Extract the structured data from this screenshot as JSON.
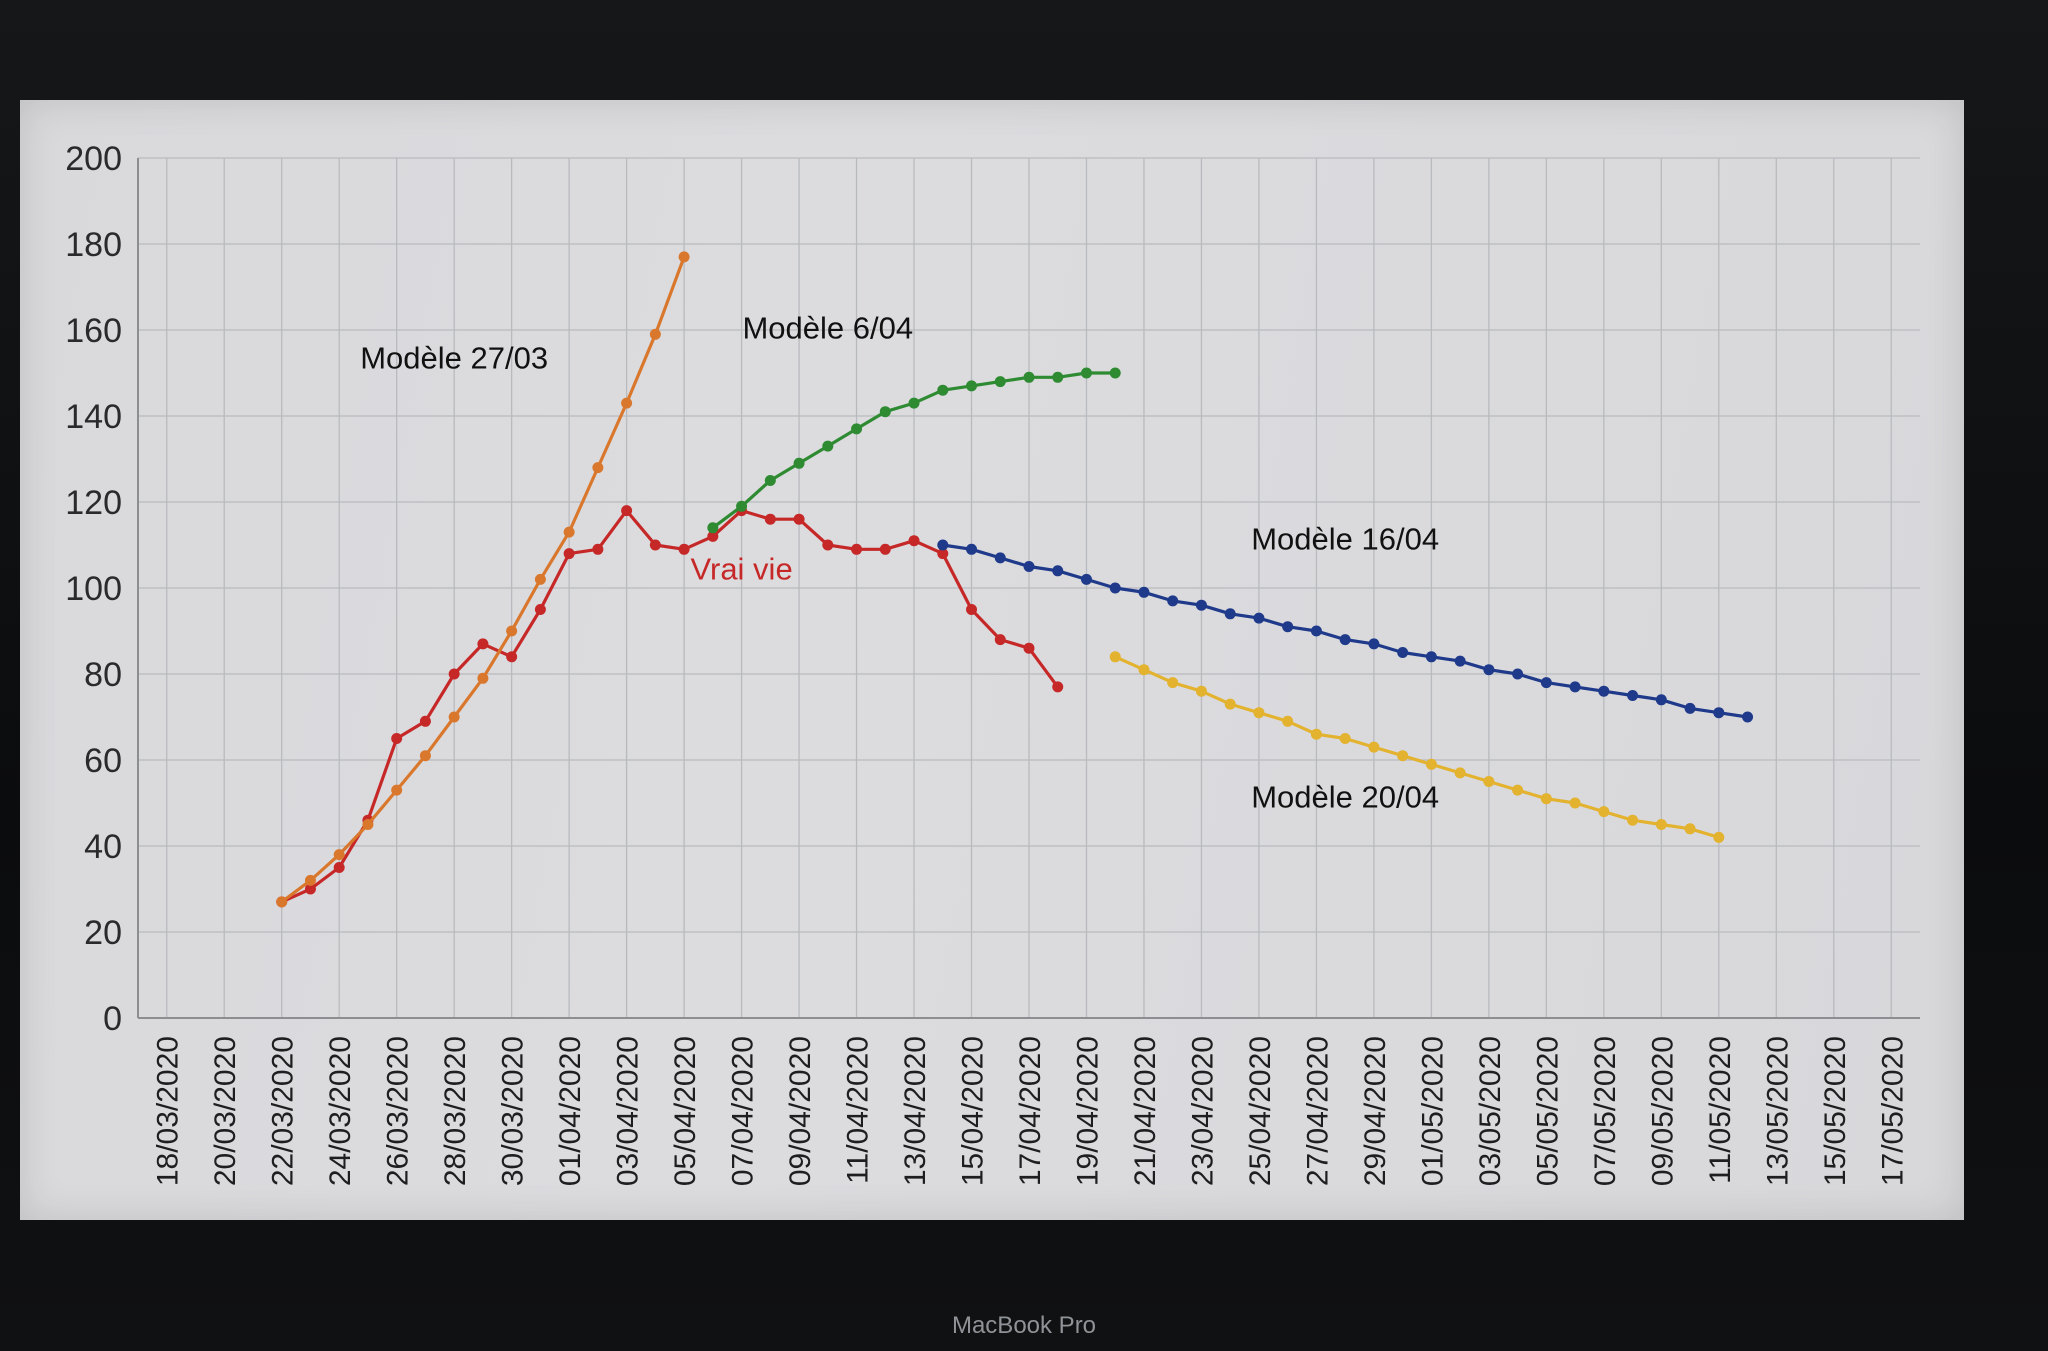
{
  "device": {
    "brand_label": "MacBook Pro"
  },
  "chart_data": {
    "type": "line",
    "ylim": [
      0,
      200
    ],
    "yticks": [
      0,
      20,
      40,
      60,
      80,
      100,
      120,
      140,
      160,
      180,
      200
    ],
    "grid": true,
    "x_type": "date",
    "xlim": [
      "2020-03-17",
      "2020-05-18"
    ],
    "xtick_labels": [
      "18/03/2020",
      "20/03/2020",
      "22/03/2020",
      "24/03/2020",
      "26/03/2020",
      "28/03/2020",
      "30/03/2020",
      "01/04/2020",
      "03/04/2020",
      "05/04/2020",
      "07/04/2020",
      "09/04/2020",
      "11/04/2020",
      "13/04/2020",
      "15/04/2020",
      "17/04/2020",
      "19/04/2020",
      "21/04/2020",
      "23/04/2020",
      "25/04/2020",
      "27/04/2020",
      "29/04/2020",
      "01/05/2020",
      "03/05/2020",
      "05/05/2020",
      "07/05/2020",
      "09/05/2020",
      "11/05/2020",
      "13/05/2020",
      "15/05/2020",
      "17/05/2020"
    ],
    "series": [
      {
        "name": "Vrai vie",
        "color": "#c62828",
        "x": [
          "2020-03-22",
          "2020-03-23",
          "2020-03-24",
          "2020-03-25",
          "2020-03-26",
          "2020-03-27",
          "2020-03-28",
          "2020-03-29",
          "2020-03-30",
          "2020-03-31",
          "2020-04-01",
          "2020-04-02",
          "2020-04-03",
          "2020-04-04",
          "2020-04-05",
          "2020-04-06",
          "2020-04-07",
          "2020-04-08",
          "2020-04-09",
          "2020-04-10",
          "2020-04-11",
          "2020-04-12",
          "2020-04-13",
          "2020-04-14",
          "2020-04-15",
          "2020-04-16",
          "2020-04-17",
          "2020-04-18"
        ],
        "y": [
          27,
          30,
          35,
          46,
          65,
          69,
          80,
          87,
          84,
          95,
          108,
          109,
          118,
          110,
          109,
          112,
          118,
          116,
          116,
          110,
          109,
          109,
          111,
          108,
          95,
          88,
          86,
          77
        ]
      },
      {
        "name": "Modèle 27/03",
        "color": "#d9782d",
        "x": [
          "2020-03-22",
          "2020-03-23",
          "2020-03-24",
          "2020-03-25",
          "2020-03-26",
          "2020-03-27",
          "2020-03-28",
          "2020-03-29",
          "2020-03-30",
          "2020-03-31",
          "2020-04-01",
          "2020-04-02",
          "2020-04-03",
          "2020-04-04",
          "2020-04-05"
        ],
        "y": [
          27,
          32,
          38,
          45,
          53,
          61,
          70,
          79,
          90,
          102,
          113,
          128,
          143,
          159,
          177
        ]
      },
      {
        "name": "Modèle 6/04",
        "color": "#2e8b32",
        "x": [
          "2020-04-06",
          "2020-04-07",
          "2020-04-08",
          "2020-04-09",
          "2020-04-10",
          "2020-04-11",
          "2020-04-12",
          "2020-04-13",
          "2020-04-14",
          "2020-04-15",
          "2020-04-16",
          "2020-04-17",
          "2020-04-18",
          "2020-04-19",
          "2020-04-20"
        ],
        "y": [
          114,
          119,
          125,
          129,
          133,
          137,
          141,
          143,
          146,
          147,
          148,
          149,
          149,
          150,
          150
        ]
      },
      {
        "name": "Modèle 16/04",
        "color": "#1f3a8a",
        "x": [
          "2020-04-14",
          "2020-04-15",
          "2020-04-16",
          "2020-04-17",
          "2020-04-18",
          "2020-04-19",
          "2020-04-20",
          "2020-04-21",
          "2020-04-22",
          "2020-04-23",
          "2020-04-24",
          "2020-04-25",
          "2020-04-26",
          "2020-04-27",
          "2020-04-28",
          "2020-04-29",
          "2020-04-30",
          "2020-05-01",
          "2020-05-02",
          "2020-05-03",
          "2020-05-04",
          "2020-05-05",
          "2020-05-06",
          "2020-05-07",
          "2020-05-08",
          "2020-05-09",
          "2020-05-10",
          "2020-05-11",
          "2020-05-12"
        ],
        "y": [
          110,
          109,
          107,
          105,
          104,
          102,
          100,
          99,
          97,
          96,
          94,
          93,
          91,
          90,
          88,
          87,
          85,
          84,
          83,
          81,
          80,
          78,
          77,
          76,
          75,
          74,
          72,
          71,
          70
        ]
      },
      {
        "name": "Modèle 20/04",
        "color": "#e3b22e",
        "x": [
          "2020-04-20",
          "2020-04-21",
          "2020-04-22",
          "2020-04-23",
          "2020-04-24",
          "2020-04-25",
          "2020-04-26",
          "2020-04-27",
          "2020-04-28",
          "2020-04-29",
          "2020-04-30",
          "2020-05-01",
          "2020-05-02",
          "2020-05-03",
          "2020-05-04",
          "2020-05-05",
          "2020-05-06",
          "2020-05-07",
          "2020-05-08",
          "2020-05-09",
          "2020-05-10",
          "2020-05-11"
        ],
        "y": [
          84,
          81,
          78,
          76,
          73,
          71,
          69,
          66,
          65,
          63,
          61,
          59,
          57,
          55,
          53,
          51,
          50,
          48,
          46,
          45,
          44,
          42
        ]
      }
    ],
    "annotations": [
      {
        "text": "Modèle 27/03",
        "x": "2020-03-28",
        "y": 151,
        "color": "#111111"
      },
      {
        "text": "Modèle 6/04",
        "x": "2020-04-10",
        "y": 158,
        "color": "#111111"
      },
      {
        "text": "Modèle 16/04",
        "x": "2020-04-28",
        "y": 109,
        "color": "#111111"
      },
      {
        "text": "Vrai vie",
        "x": "2020-04-07",
        "y": 102,
        "color": "#c62828"
      },
      {
        "text": "Modèle 20/04",
        "x": "2020-04-28",
        "y": 49,
        "color": "#111111"
      }
    ]
  }
}
